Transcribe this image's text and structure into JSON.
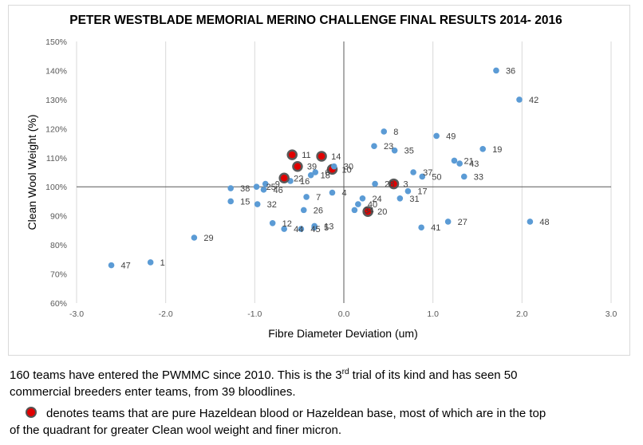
{
  "chart_data": {
    "type": "scatter",
    "title": "PETER WESTBLADE MEMORIAL MERINO CHALLENGE FINAL RESULTS 2014- 2016",
    "xlabel": "Fibre Diameter Deviation (um)",
    "ylabel": "Clean Wool Weight (%)",
    "xlim": [
      -3.0,
      3.0
    ],
    "ylim": [
      60,
      150
    ],
    "x_ticks": [
      "-3.0",
      "-2.0",
      "-1.0",
      "0.0",
      "1.0",
      "2.0",
      "3.0"
    ],
    "y_ticks": [
      "60%",
      "70%",
      "80%",
      "90%",
      "100%",
      "110%",
      "120%",
      "130%",
      "140%",
      "150%"
    ],
    "grid": "vertical",
    "reference_lines": {
      "x": 0,
      "y": 100
    },
    "colors": {
      "point": "#5b9bd5",
      "hazeldean": "#e00000",
      "hazeldean_ring": "#595959"
    },
    "points": [
      {
        "label": "1",
        "x": -2.17,
        "y": 74,
        "hazeldean": false
      },
      {
        "label": "3",
        "x": 0.56,
        "y": 101,
        "hazeldean": true
      },
      {
        "label": "4",
        "x": -0.13,
        "y": 98,
        "hazeldean": false
      },
      {
        "label": "5",
        "x": -0.33,
        "y": 86,
        "hazeldean": false
      },
      {
        "label": "6",
        "x": -0.32,
        "y": 105,
        "hazeldean": false
      },
      {
        "label": "7",
        "x": -0.42,
        "y": 96.5,
        "hazeldean": false
      },
      {
        "label": "8",
        "x": 0.45,
        "y": 119,
        "hazeldean": false
      },
      {
        "label": "9",
        "x": -0.88,
        "y": 101,
        "hazeldean": false
      },
      {
        "label": "10",
        "x": -0.13,
        "y": 106,
        "hazeldean": true
      },
      {
        "label": "11",
        "x": -0.58,
        "y": 111,
        "hazeldean": true
      },
      {
        "label": "12",
        "x": -0.8,
        "y": 87.5,
        "hazeldean": false
      },
      {
        "label": "13",
        "x": -0.33,
        "y": 86.5,
        "hazeldean": false
      },
      {
        "label": "14",
        "x": -0.25,
        "y": 110.5,
        "hazeldean": true
      },
      {
        "label": "15",
        "x": -1.27,
        "y": 95,
        "hazeldean": false
      },
      {
        "label": "16",
        "x": -0.6,
        "y": 102,
        "hazeldean": false
      },
      {
        "label": "17",
        "x": 0.72,
        "y": 98.5,
        "hazeldean": false
      },
      {
        "label": "18",
        "x": -0.37,
        "y": 104,
        "hazeldean": false
      },
      {
        "label": "19",
        "x": 1.56,
        "y": 113,
        "hazeldean": false
      },
      {
        "label": "20",
        "x": 0.27,
        "y": 91.5,
        "hazeldean": true
      },
      {
        "label": "21",
        "x": 1.24,
        "y": 109,
        "hazeldean": false
      },
      {
        "label": "22",
        "x": -0.67,
        "y": 103,
        "hazeldean": true
      },
      {
        "label": "23",
        "x": 0.34,
        "y": 114,
        "hazeldean": false
      },
      {
        "label": "24",
        "x": 0.21,
        "y": 96,
        "hazeldean": false
      },
      {
        "label": "25",
        "x": -0.98,
        "y": 100,
        "hazeldean": false
      },
      {
        "label": "26",
        "x": -0.45,
        "y": 92,
        "hazeldean": false
      },
      {
        "label": "27",
        "x": 1.17,
        "y": 88,
        "hazeldean": false
      },
      {
        "label": "28",
        "x": 0.35,
        "y": 101,
        "hazeldean": false
      },
      {
        "label": "29",
        "x": -1.68,
        "y": 82.5,
        "hazeldean": false
      },
      {
        "label": "30",
        "x": -0.11,
        "y": 107,
        "hazeldean": false
      },
      {
        "label": "31",
        "x": 0.63,
        "y": 96,
        "hazeldean": false
      },
      {
        "label": "32",
        "x": -0.97,
        "y": 94,
        "hazeldean": false
      },
      {
        "label": "33",
        "x": 1.35,
        "y": 103.5,
        "hazeldean": false
      },
      {
        "label": "34",
        "x": 0.12,
        "y": 92,
        "hazeldean": false
      },
      {
        "label": "35",
        "x": 0.57,
        "y": 112.5,
        "hazeldean": false
      },
      {
        "label": "36",
        "x": 1.71,
        "y": 140,
        "hazeldean": false
      },
      {
        "label": "37",
        "x": 0.78,
        "y": 105,
        "hazeldean": false
      },
      {
        "label": "38",
        "x": -1.27,
        "y": 99.5,
        "hazeldean": false
      },
      {
        "label": "39",
        "x": -0.52,
        "y": 107,
        "hazeldean": true
      },
      {
        "label": "40",
        "x": 0.16,
        "y": 94,
        "hazeldean": false
      },
      {
        "label": "41",
        "x": 0.87,
        "y": 86,
        "hazeldean": false
      },
      {
        "label": "42",
        "x": 1.97,
        "y": 130,
        "hazeldean": false
      },
      {
        "label": "43",
        "x": 1.3,
        "y": 108,
        "hazeldean": false
      },
      {
        "label": "44",
        "x": -0.67,
        "y": 85.5,
        "hazeldean": false
      },
      {
        "label": "45",
        "x": -0.48,
        "y": 85.5,
        "hazeldean": false
      },
      {
        "label": "46",
        "x": -0.9,
        "y": 99,
        "hazeldean": false
      },
      {
        "label": "47",
        "x": -2.61,
        "y": 73,
        "hazeldean": false
      },
      {
        "label": "48",
        "x": 2.09,
        "y": 88,
        "hazeldean": false
      },
      {
        "label": "49",
        "x": 1.04,
        "y": 117.5,
        "hazeldean": false
      },
      {
        "label": "50",
        "x": 0.88,
        "y": 103.5,
        "hazeldean": false
      }
    ]
  },
  "caption": {
    "line1_before_sup": "160 teams have entered the PWMMC since 2010.  This is the 3",
    "line1_sup": "rd",
    "line1_after_sup": " trial of its kind and has seen 50",
    "line2": "commercial breeders enter teams, from 39 bloodlines.",
    "legend_text": "denotes teams that are pure Hazeldean blood or Hazeldean base, most of which are in the top",
    "line4": "of the quadrant for greater Clean wool weight and finer micron."
  }
}
